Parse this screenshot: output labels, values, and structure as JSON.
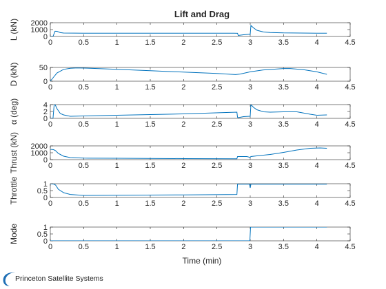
{
  "title": "Lift and Drag",
  "x_label": "Time (min)",
  "logo": {
    "text": "Princeton Satellite Systems"
  },
  "colors": {
    "line": "#0072BD",
    "axis": "#262626",
    "logo_blue": "#1f6fb5"
  },
  "chart_data": [
    {
      "type": "line",
      "ylabel": "L (kN)",
      "xlim": [
        0,
        4.5
      ],
      "ylim": [
        0,
        2000
      ],
      "xticks": [
        "0",
        "0.5",
        "1",
        "1.5",
        "2",
        "2.5",
        "3",
        "3.5",
        "4",
        "4.5"
      ],
      "yticks": [
        "0",
        "1000",
        "2000"
      ],
      "ytick_values": [
        0,
        1000,
        2000
      ],
      "x": [
        0.0,
        0.04,
        0.07,
        0.1,
        0.15,
        0.2,
        0.5,
        1.0,
        2.0,
        2.75,
        2.81,
        2.82,
        2.9,
        2.99,
        3.0,
        3.01,
        3.05,
        3.1,
        3.2,
        3.3,
        3.5,
        4.0,
        4.15
      ],
      "y": [
        0,
        0,
        760,
        750,
        560,
        500,
        470,
        470,
        470,
        470,
        460,
        150,
        250,
        330,
        320,
        1600,
        1250,
        900,
        650,
        580,
        520,
        480,
        470
      ]
    },
    {
      "type": "line",
      "ylabel": "D (kN)",
      "xlim": [
        0,
        4.5
      ],
      "ylim": [
        0,
        50
      ],
      "xticks": [
        "0",
        "0.5",
        "1",
        "1.5",
        "2",
        "2.5",
        "3",
        "3.5",
        "4",
        "4.5"
      ],
      "yticks": [
        "0",
        "50"
      ],
      "ytick_values": [
        0,
        50
      ],
      "x": [
        0.0,
        0.05,
        0.1,
        0.2,
        0.3,
        0.4,
        0.6,
        1.0,
        1.5,
        2.0,
        2.5,
        2.78,
        2.85,
        3.0,
        3.2,
        3.5,
        3.6,
        3.8,
        4.0,
        4.15
      ],
      "y": [
        0,
        15,
        30,
        43,
        47,
        48,
        47,
        43,
        38,
        33,
        28,
        24,
        26,
        34,
        41,
        46,
        46,
        42,
        34,
        25
      ]
    },
    {
      "type": "line",
      "ylabel": "α (deg)",
      "xlim": [
        0,
        4.5
      ],
      "ylim": [
        0,
        4
      ],
      "xticks": [
        "0",
        "0.5",
        "1",
        "1.5",
        "2",
        "2.5",
        "3",
        "3.5",
        "4",
        "4.5"
      ],
      "yticks": [
        "0",
        "2",
        "4"
      ],
      "ytick_values": [
        0,
        2,
        4
      ],
      "x": [
        0.0,
        0.04,
        0.06,
        0.1,
        0.15,
        0.2,
        0.3,
        0.5,
        1.0,
        2.0,
        2.8,
        2.81,
        2.82,
        2.9,
        2.99,
        3.0,
        3.01,
        3.05,
        3.1,
        3.2,
        3.3,
        3.5,
        3.7,
        3.9,
        4.0,
        4.15
      ],
      "y": [
        0,
        0,
        4.5,
        2.8,
        1.4,
        1.0,
        0.6,
        0.7,
        0.9,
        1.3,
        1.8,
        0.3,
        0.2,
        0.5,
        0.6,
        0.6,
        4.0,
        3.2,
        2.5,
        1.9,
        1.8,
        1.9,
        1.9,
        1.2,
        0.9,
        1.0
      ]
    },
    {
      "type": "line",
      "ylabel": "Thrust (kN)",
      "xlim": [
        0,
        4.5
      ],
      "ylim": [
        0,
        2000
      ],
      "xticks": [
        "0",
        "0.5",
        "1",
        "1.5",
        "2",
        "2.5",
        "3",
        "3.5",
        "4",
        "4.5"
      ],
      "yticks": [
        "0",
        "1000",
        "2000"
      ],
      "ytick_values": [
        0,
        1000,
        2000
      ],
      "x": [
        0.0,
        0.05,
        0.08,
        0.12,
        0.2,
        0.3,
        0.5,
        1.0,
        2.0,
        2.8,
        2.81,
        2.95,
        2.99,
        3.0,
        3.01,
        3.1,
        3.3,
        3.5,
        3.7,
        3.9,
        4.05,
        4.15
      ],
      "y": [
        1500,
        1450,
        1300,
        900,
        500,
        300,
        220,
        200,
        150,
        120,
        450,
        450,
        350,
        350,
        450,
        550,
        750,
        1050,
        1400,
        1650,
        1700,
        1650
      ]
    },
    {
      "type": "line",
      "ylabel": "Throttle",
      "xlim": [
        0,
        4.5
      ],
      "ylim": [
        0,
        1
      ],
      "xticks": [
        "0",
        "0.5",
        "1",
        "1.5",
        "2",
        "2.5",
        "3",
        "3.5",
        "4",
        "4.5"
      ],
      "yticks": [
        "0",
        "0.5",
        "1"
      ],
      "ytick_values": [
        0,
        0.5,
        1
      ],
      "x": [
        0.0,
        0.05,
        0.08,
        0.12,
        0.2,
        0.3,
        0.5,
        1.0,
        2.0,
        2.8,
        2.81,
        2.99,
        3.0,
        3.01,
        3.05,
        3.5,
        4.15
      ],
      "y": [
        1.0,
        0.98,
        0.9,
        0.6,
        0.35,
        0.22,
        0.15,
        0.16,
        0.19,
        0.22,
        0.97,
        0.97,
        0.7,
        0.97,
        0.97,
        0.97,
        0.97
      ]
    },
    {
      "type": "line",
      "ylabel": "Mode",
      "xlim": [
        0,
        4.5
      ],
      "ylim": [
        0,
        1
      ],
      "xticks": [
        "0",
        "0.5",
        "1",
        "1.5",
        "2",
        "2.5",
        "3",
        "3.5",
        "4",
        "4.5"
      ],
      "yticks": [
        "0",
        "0.5",
        "1"
      ],
      "ytick_values": [
        0,
        0.5,
        1
      ],
      "x": [
        0.0,
        2.995,
        3.005,
        4.15
      ],
      "y": [
        0,
        0,
        1,
        1
      ]
    }
  ]
}
